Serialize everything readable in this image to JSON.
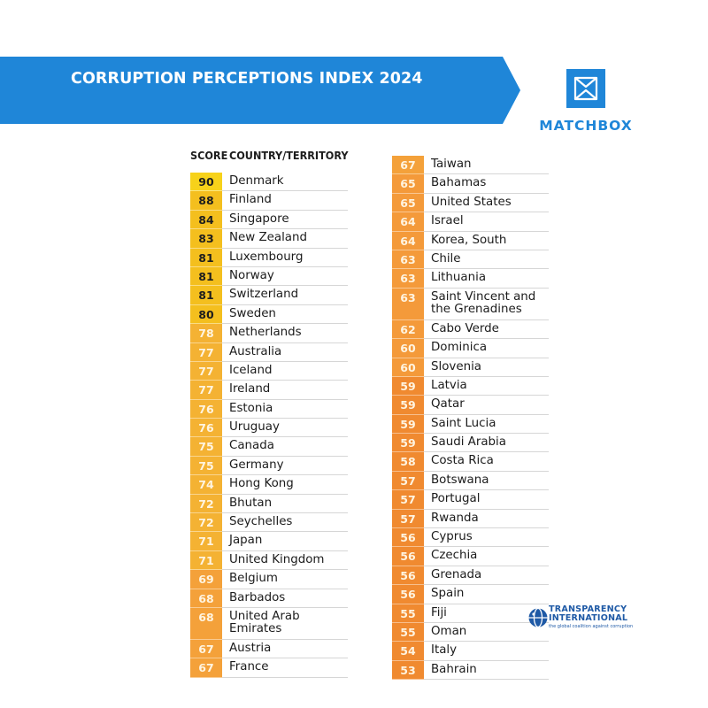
{
  "banner": {
    "title": "CORRUPTION PERCEPTIONS INDEX 2024",
    "color": "#1f86d8"
  },
  "brand": {
    "name": "MATCHBOX",
    "icon": "matchbox-logo-icon",
    "color": "#1f86d8"
  },
  "table": {
    "header_score": "SCORE",
    "header_country": "COUNTRY/TERRITORY",
    "left": [
      {
        "score": "90",
        "country": "Denmark",
        "color": "#f7d21a"
      },
      {
        "score": "88",
        "country": "Finland",
        "color": "#f4bf1e"
      },
      {
        "score": "84",
        "country": "Singapore",
        "color": "#f4bf1e"
      },
      {
        "score": "83",
        "country": "New Zealand",
        "color": "#f4bf1e"
      },
      {
        "score": "81",
        "country": "Luxembourg",
        "color": "#f4bf1e"
      },
      {
        "score": "81",
        "country": "Norway",
        "color": "#f4bf1e"
      },
      {
        "score": "81",
        "country": "Switzerland",
        "color": "#f4bf1e"
      },
      {
        "score": "80",
        "country": "Sweden",
        "color": "#f4bf1e"
      },
      {
        "score": "78",
        "country": "Netherlands",
        "color": "#f4b233"
      },
      {
        "score": "77",
        "country": "Australia",
        "color": "#f4b233"
      },
      {
        "score": "77",
        "country": "Iceland",
        "color": "#f4b233"
      },
      {
        "score": "77",
        "country": "Ireland",
        "color": "#f4b233"
      },
      {
        "score": "76",
        "country": "Estonia",
        "color": "#f4b233"
      },
      {
        "score": "76",
        "country": "Uruguay",
        "color": "#f4b233"
      },
      {
        "score": "75",
        "country": "Canada",
        "color": "#f4b233"
      },
      {
        "score": "75",
        "country": "Germany",
        "color": "#f4b233"
      },
      {
        "score": "74",
        "country": "Hong Kong",
        "color": "#f4b233"
      },
      {
        "score": "72",
        "country": "Bhutan",
        "color": "#f4b233"
      },
      {
        "score": "72",
        "country": "Seychelles",
        "color": "#f4b233"
      },
      {
        "score": "71",
        "country": "Japan",
        "color": "#f4b233"
      },
      {
        "score": "71",
        "country": "United Kingdom",
        "color": "#f4b233"
      },
      {
        "score": "69",
        "country": "Belgium",
        "color": "#f4a13a"
      },
      {
        "score": "68",
        "country": "Barbados",
        "color": "#f4a13a"
      },
      {
        "score": "68",
        "country": "United Arab Emirates",
        "color": "#f4a13a",
        "tall": true
      },
      {
        "score": "67",
        "country": "Austria",
        "color": "#f4a13a"
      },
      {
        "score": "67",
        "country": "France",
        "color": "#f4a13a"
      }
    ],
    "right": [
      {
        "score": "67",
        "country": "Taiwan",
        "color": "#f4a13a"
      },
      {
        "score": "65",
        "country": "Bahamas",
        "color": "#f49a3a"
      },
      {
        "score": "65",
        "country": "United States",
        "color": "#f49a3a"
      },
      {
        "score": "64",
        "country": "Israel",
        "color": "#f49a3a"
      },
      {
        "score": "64",
        "country": "Korea, South",
        "color": "#f49a3a"
      },
      {
        "score": "63",
        "country": "Chile",
        "color": "#f49a3a"
      },
      {
        "score": "63",
        "country": "Lithuania",
        "color": "#f49a3a"
      },
      {
        "score": "63",
        "country": "Saint Vincent and the Grenadines",
        "color": "#f49a3a",
        "tall": true
      },
      {
        "score": "62",
        "country": "Cabo Verde",
        "color": "#f49a3a"
      },
      {
        "score": "60",
        "country": "Dominica",
        "color": "#f49a3a"
      },
      {
        "score": "60",
        "country": "Slovenia",
        "color": "#f49a3a"
      },
      {
        "score": "59",
        "country": "Latvia",
        "color": "#f08a30"
      },
      {
        "score": "59",
        "country": "Qatar",
        "color": "#f08a30"
      },
      {
        "score": "59",
        "country": "Saint Lucia",
        "color": "#f08a30"
      },
      {
        "score": "59",
        "country": "Saudi Arabia",
        "color": "#f08a30"
      },
      {
        "score": "58",
        "country": "Costa Rica",
        "color": "#f08a30"
      },
      {
        "score": "57",
        "country": "Botswana",
        "color": "#f08a30"
      },
      {
        "score": "57",
        "country": "Portugal",
        "color": "#f08a30"
      },
      {
        "score": "57",
        "country": "Rwanda",
        "color": "#f08a30"
      },
      {
        "score": "56",
        "country": "Cyprus",
        "color": "#f08a30"
      },
      {
        "score": "56",
        "country": "Czechia",
        "color": "#f08a30"
      },
      {
        "score": "56",
        "country": "Grenada",
        "color": "#f08a30"
      },
      {
        "score": "56",
        "country": "Spain",
        "color": "#f08a30"
      },
      {
        "score": "55",
        "country": "Fiji",
        "color": "#f08a30"
      },
      {
        "score": "55",
        "country": "Oman",
        "color": "#f08a30"
      },
      {
        "score": "54",
        "country": "Italy",
        "color": "#f08a30"
      },
      {
        "score": "53",
        "country": "Bahrain",
        "color": "#f08a30"
      }
    ]
  },
  "partner": {
    "name": "TRANSPARENCY INTERNATIONAL",
    "tagline": "the global coalition against corruption",
    "icon": "globe-logo-icon",
    "color": "#1f5aa6"
  }
}
